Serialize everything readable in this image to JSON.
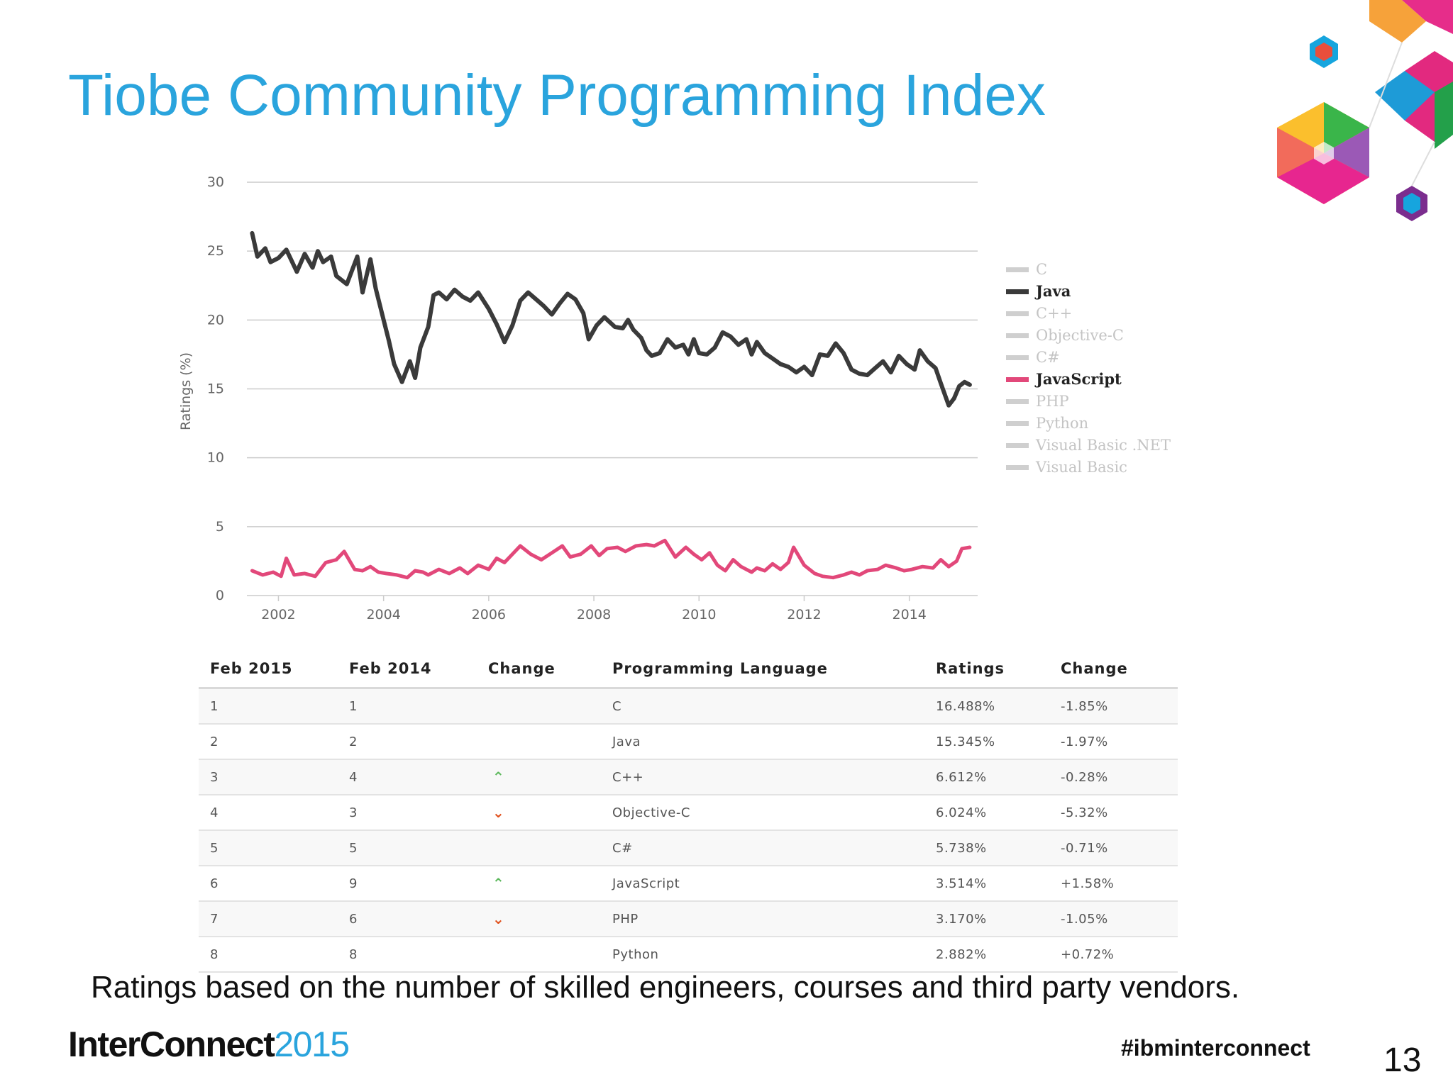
{
  "slide": {
    "title": "Tiobe Community Programming Index",
    "caption": "Ratings based on the number of skilled engineers, courses and third party vendors.",
    "logo_main": "InterConnect",
    "logo_year": "2015",
    "hashtag": "#ibminterconnect",
    "page_number": "13"
  },
  "colors": {
    "accent": "#2aa4dd",
    "java": "#3a3a3a",
    "javascript": "#e2487a",
    "legend_inactive": "#c8c8c8"
  },
  "chart_data": {
    "type": "line",
    "ylabel": "Ratings (%)",
    "ylim": [
      0,
      30
    ],
    "yticks": [
      0,
      5,
      10,
      15,
      20,
      25,
      30
    ],
    "xlim": [
      2001.4,
      2015.3
    ],
    "xticks": [
      2002,
      2004,
      2006,
      2008,
      2010,
      2012,
      2014
    ],
    "grid": true,
    "legend_position": "right",
    "legend": [
      {
        "name": "C",
        "active": false
      },
      {
        "name": "Java",
        "active": true
      },
      {
        "name": "C++",
        "active": false
      },
      {
        "name": "Objective-C",
        "active": false
      },
      {
        "name": "C#",
        "active": false
      },
      {
        "name": "JavaScript",
        "active": true
      },
      {
        "name": "PHP",
        "active": false
      },
      {
        "name": "Python",
        "active": false
      },
      {
        "name": "Visual Basic .NET",
        "active": false
      },
      {
        "name": "Visual Basic",
        "active": false
      }
    ],
    "series": [
      {
        "name": "Java",
        "color": "#3a3a3a",
        "x": [
          2001.5,
          2001.6,
          2001.75,
          2001.85,
          2002.0,
          2002.15,
          2002.35,
          2002.5,
          2002.65,
          2002.75,
          2002.85,
          2003.0,
          2003.1,
          2003.3,
          2003.5,
          2003.6,
          2003.75,
          2003.85,
          2004.0,
          2004.1,
          2004.2,
          2004.35,
          2004.5,
          2004.6,
          2004.7,
          2004.85,
          2004.95,
          2005.05,
          2005.2,
          2005.35,
          2005.5,
          2005.65,
          2005.8,
          2006.0,
          2006.15,
          2006.3,
          2006.45,
          2006.6,
          2006.75,
          2006.9,
          2007.05,
          2007.2,
          2007.35,
          2007.5,
          2007.65,
          2007.8,
          2007.9,
          2008.05,
          2008.2,
          2008.4,
          2008.55,
          2008.65,
          2008.75,
          2008.9,
          2009.0,
          2009.1,
          2009.25,
          2009.4,
          2009.55,
          2009.7,
          2009.8,
          2009.9,
          2010.0,
          2010.15,
          2010.3,
          2010.45,
          2010.6,
          2010.75,
          2010.9,
          2011.0,
          2011.1,
          2011.25,
          2011.4,
          2011.55,
          2011.7,
          2011.85,
          2012.0,
          2012.15,
          2012.3,
          2012.45,
          2012.6,
          2012.75,
          2012.9,
          2013.05,
          2013.2,
          2013.35,
          2013.5,
          2013.65,
          2013.8,
          2013.95,
          2014.1,
          2014.2,
          2014.35,
          2014.5,
          2014.6,
          2014.75,
          2014.85,
          2014.95,
          2015.05,
          2015.15
        ],
        "values": [
          26.3,
          24.6,
          25.2,
          24.2,
          24.5,
          25.1,
          23.5,
          24.8,
          23.8,
          25.0,
          24.2,
          24.6,
          23.2,
          22.6,
          24.6,
          22.0,
          24.4,
          22.3,
          20.0,
          18.5,
          16.8,
          15.5,
          17.0,
          15.8,
          18.0,
          19.5,
          21.8,
          22.0,
          21.5,
          22.2,
          21.7,
          21.4,
          22.0,
          20.8,
          19.7,
          18.4,
          19.6,
          21.4,
          22.0,
          21.5,
          21.0,
          20.4,
          21.2,
          21.9,
          21.5,
          20.5,
          18.6,
          19.6,
          20.2,
          19.5,
          19.4,
          20.0,
          19.3,
          18.7,
          17.8,
          17.4,
          17.6,
          18.6,
          18.0,
          18.2,
          17.5,
          18.6,
          17.6,
          17.5,
          18.0,
          19.1,
          18.8,
          18.2,
          18.6,
          17.5,
          18.4,
          17.6,
          17.2,
          16.8,
          16.6,
          16.2,
          16.6,
          16.0,
          17.5,
          17.4,
          18.3,
          17.6,
          16.4,
          16.1,
          16.0,
          16.5,
          17.0,
          16.2,
          17.4,
          16.8,
          16.4,
          17.8,
          17.0,
          16.5,
          15.4,
          13.8,
          14.3,
          15.2,
          15.5,
          15.3
        ]
      },
      {
        "name": "JavaScript",
        "color": "#e2487a",
        "x": [
          2001.5,
          2001.7,
          2001.9,
          2002.05,
          2002.15,
          2002.3,
          2002.5,
          2002.7,
          2002.9,
          2003.1,
          2003.25,
          2003.45,
          2003.6,
          2003.75,
          2003.9,
          2004.05,
          2004.25,
          2004.45,
          2004.6,
          2004.75,
          2004.85,
          2005.05,
          2005.25,
          2005.45,
          2005.6,
          2005.8,
          2006.0,
          2006.15,
          2006.3,
          2006.45,
          2006.6,
          2006.8,
          2007.0,
          2007.2,
          2007.4,
          2007.55,
          2007.75,
          2007.95,
          2008.1,
          2008.25,
          2008.45,
          2008.6,
          2008.8,
          2009.0,
          2009.15,
          2009.35,
          2009.55,
          2009.75,
          2009.9,
          2010.05,
          2010.2,
          2010.35,
          2010.5,
          2010.65,
          2010.8,
          2011.0,
          2011.1,
          2011.25,
          2011.4,
          2011.55,
          2011.7,
          2011.8,
          2012.0,
          2012.2,
          2012.35,
          2012.55,
          2012.75,
          2012.9,
          2013.05,
          2013.2,
          2013.4,
          2013.55,
          2013.75,
          2013.9,
          2014.05,
          2014.25,
          2014.45,
          2014.6,
          2014.75,
          2014.9,
          2015.0,
          2015.15
        ],
        "values": [
          1.8,
          1.5,
          1.7,
          1.4,
          2.7,
          1.5,
          1.6,
          1.4,
          2.4,
          2.6,
          3.2,
          1.9,
          1.8,
          2.1,
          1.7,
          1.6,
          1.5,
          1.3,
          1.8,
          1.7,
          1.5,
          1.9,
          1.6,
          2.0,
          1.6,
          2.2,
          1.9,
          2.7,
          2.4,
          3.0,
          3.6,
          3.0,
          2.6,
          3.1,
          3.6,
          2.8,
          3.0,
          3.6,
          2.9,
          3.4,
          3.5,
          3.2,
          3.6,
          3.7,
          3.6,
          4.0,
          2.8,
          3.5,
          3.0,
          2.6,
          3.1,
          2.2,
          1.8,
          2.6,
          2.1,
          1.7,
          2.0,
          1.8,
          2.3,
          1.9,
          2.4,
          3.5,
          2.2,
          1.6,
          1.4,
          1.3,
          1.5,
          1.7,
          1.5,
          1.8,
          1.9,
          2.2,
          2.0,
          1.8,
          1.9,
          2.1,
          2.0,
          2.6,
          2.1,
          2.5,
          3.4,
          3.5
        ]
      }
    ]
  },
  "table": {
    "headers": [
      "Feb 2015",
      "Feb 2014",
      "Change",
      "Programming Language",
      "Ratings",
      "Change"
    ],
    "rows": [
      {
        "feb2015": "1",
        "feb2014": "1",
        "trend": "none",
        "language": "C",
        "rating": "16.488%",
        "change": "-1.85%"
      },
      {
        "feb2015": "2",
        "feb2014": "2",
        "trend": "none",
        "language": "Java",
        "rating": "15.345%",
        "change": "-1.97%"
      },
      {
        "feb2015": "3",
        "feb2014": "4",
        "trend": "up",
        "language": "C++",
        "rating": "6.612%",
        "change": "-0.28%"
      },
      {
        "feb2015": "4",
        "feb2014": "3",
        "trend": "down",
        "language": "Objective-C",
        "rating": "6.024%",
        "change": "-5.32%"
      },
      {
        "feb2015": "5",
        "feb2014": "5",
        "trend": "none",
        "language": "C#",
        "rating": "5.738%",
        "change": "-0.71%"
      },
      {
        "feb2015": "6",
        "feb2014": "9",
        "trend": "up",
        "language": "JavaScript",
        "rating": "3.514%",
        "change": "+1.58%"
      },
      {
        "feb2015": "7",
        "feb2014": "6",
        "trend": "down",
        "language": "PHP",
        "rating": "3.170%",
        "change": "-1.05%"
      },
      {
        "feb2015": "8",
        "feb2014": "8",
        "trend": "none",
        "language": "Python",
        "rating": "2.882%",
        "change": "+0.72%"
      }
    ]
  }
}
